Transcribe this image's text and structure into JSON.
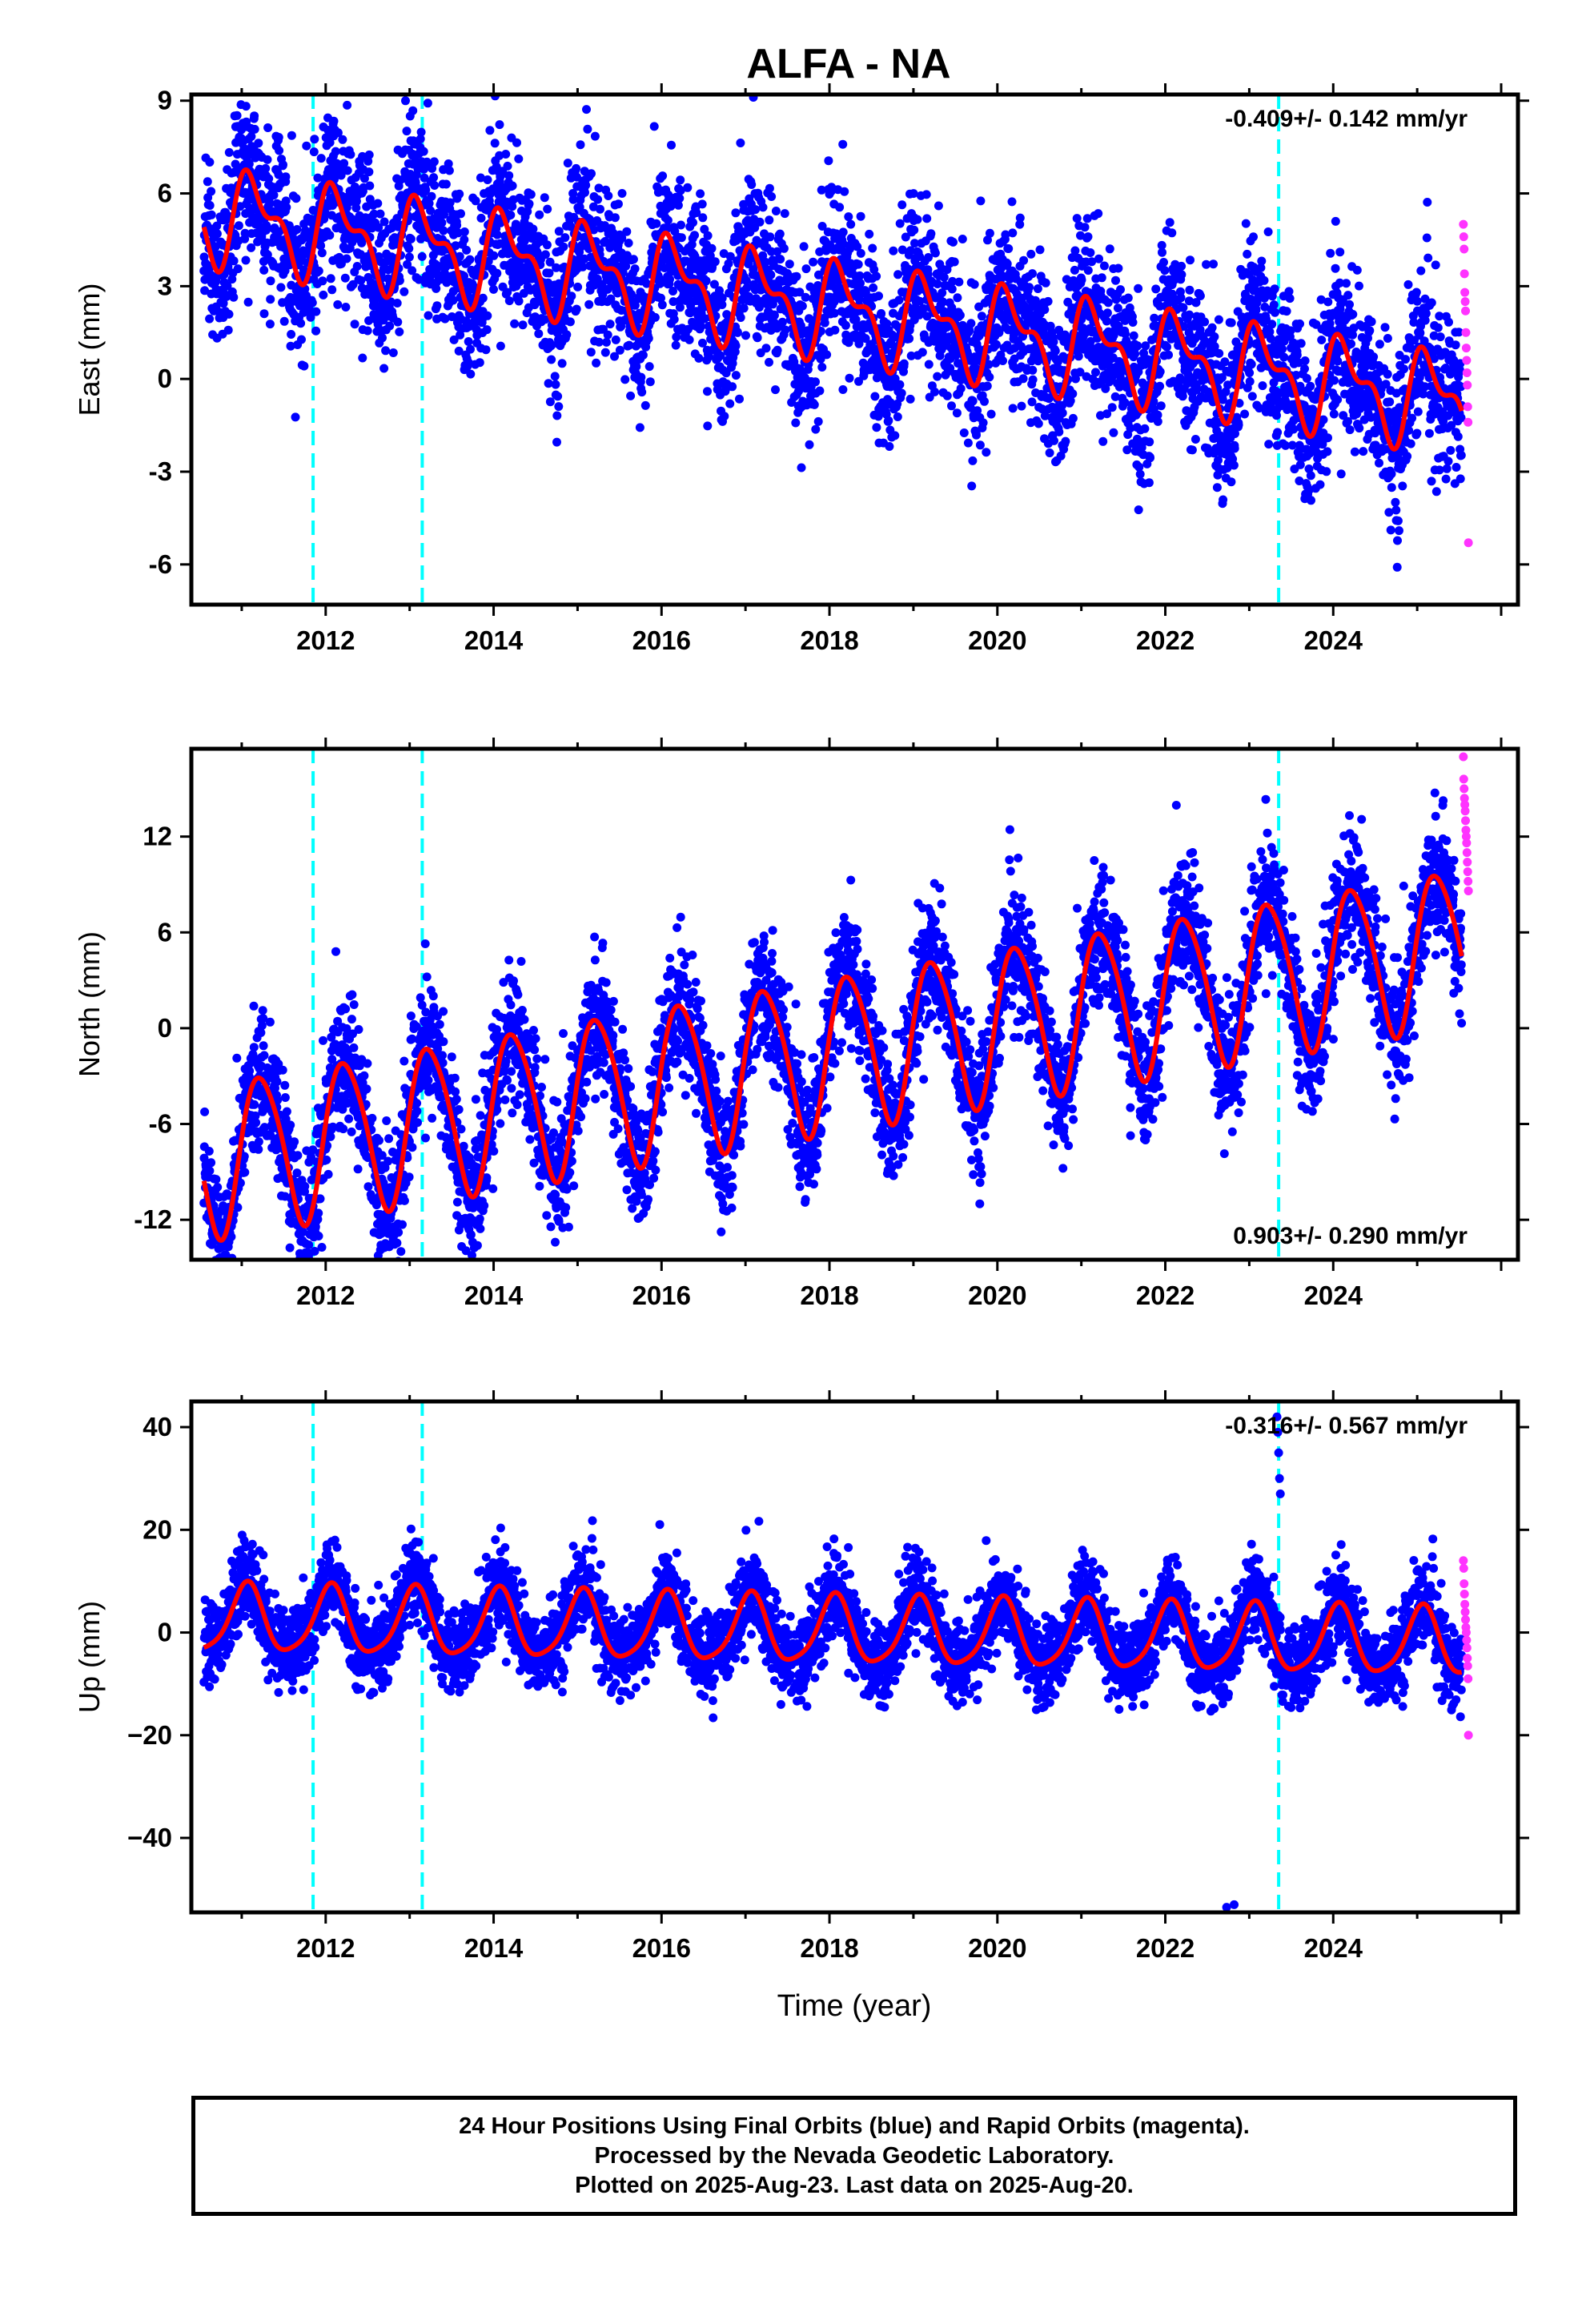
{
  "title": "ALFA - NA",
  "x_axis": {
    "label": "Time (year)",
    "ticks": [
      "2012",
      "2014",
      "2016",
      "2018",
      "2020",
      "2022",
      "2024"
    ],
    "tick_values": [
      2012,
      2014,
      2016,
      2018,
      2020,
      2022,
      2024
    ],
    "range": [
      2010.4,
      2026.2
    ]
  },
  "colors": {
    "final_orbits": "#0000ff",
    "rapid_orbits": "#ff33ff",
    "model": "#ff0000",
    "events": "#00ffff",
    "frame": "#000000"
  },
  "chart_data": [
    {
      "type": "scatter",
      "component": "east",
      "ylabel": "East (mm)",
      "ylim": [
        -7.3,
        9.2
      ],
      "yticks": [
        9,
        6,
        3,
        0,
        -3,
        -6
      ],
      "ytick_labels": [
        "9",
        "6",
        "3",
        "0",
        "-3",
        "-6"
      ],
      "rate_label": "-0.409+/- 0.142 mm/yr",
      "rate_position": "top-right",
      "rate_mm_per_yr": -0.409,
      "offset_mm": 2.3,
      "offset_epoch": 2018.0,
      "seasonal": {
        "annual_amp_mm": 1.3,
        "annual_phase": 0.6,
        "semiannual_amp_mm": 0.7,
        "semiannual_phase": 1.5
      },
      "scatter_sigma_mm": 1.3,
      "series": [
        {
          "name": "Final Orbits",
          "color": "blue",
          "x_start": 2010.55,
          "x_end": 2025.53
        },
        {
          "name": "Rapid Orbits",
          "color": "magenta",
          "x_start": 2025.53,
          "x_end": 2025.63,
          "values": [
            5.0,
            4.6,
            4.2,
            3.4,
            2.8,
            2.5,
            2.2,
            1.5,
            1.0,
            0.6,
            0.2,
            -0.2,
            -0.9,
            -1.4,
            -5.3
          ]
        }
      ],
      "event_lines": [
        2011.85,
        2013.15,
        2023.35
      ]
    },
    {
      "type": "scatter",
      "component": "north",
      "ylabel": "North (mm)",
      "ylim": [
        -14.5,
        17.5
      ],
      "yticks": [
        12,
        6,
        0,
        -6,
        -12
      ],
      "ytick_labels": [
        "12",
        "6",
        "0",
        "-6",
        "-12"
      ],
      "rate_label": "0.903+/- 0.290 mm/yr",
      "rate_position": "bottom-right",
      "rate_mm_per_yr": 0.903,
      "offset_mm": -1.5,
      "offset_epoch": 2018.0,
      "seasonal": {
        "annual_amp_mm": 4.8,
        "annual_phase": 0.1,
        "semiannual_amp_mm": 0.6,
        "semiannual_phase": 0.9
      },
      "scatter_sigma_mm": 2.0,
      "series": [
        {
          "name": "Final Orbits",
          "color": "blue",
          "x_start": 2010.55,
          "x_end": 2025.53
        },
        {
          "name": "Rapid Orbits",
          "color": "magenta",
          "x_start": 2025.53,
          "x_end": 2025.63,
          "values": [
            17.0,
            15.6,
            15.0,
            14.4,
            14.0,
            13.6,
            13.0,
            12.4,
            12.0,
            11.6,
            11.0,
            10.4,
            9.8,
            9.2,
            8.6
          ]
        }
      ],
      "event_lines": [
        2011.85,
        2013.15,
        2023.35
      ]
    },
    {
      "type": "scatter",
      "component": "up",
      "ylabel": "Up (mm)",
      "ylim": [
        -54.5,
        45
      ],
      "yticks": [
        40,
        20,
        0,
        -20,
        -40
      ],
      "ytick_labels": [
        "40",
        "20",
        "0",
        "−20",
        "−40"
      ],
      "rate_label": "-0.316+/- 0.567 mm/yr",
      "rate_position": "top-right",
      "rate_mm_per_yr": -0.316,
      "offset_mm": 0.2,
      "offset_epoch": 2018.0,
      "seasonal": {
        "annual_amp_mm": 6.5,
        "annual_phase": 1.2,
        "semiannual_amp_mm": 1.2,
        "semiannual_phase": 0.4
      },
      "scatter_sigma_mm": 4.0,
      "series": [
        {
          "name": "Final Orbits",
          "color": "blue",
          "x_start": 2010.55,
          "x_end": 2025.53
        },
        {
          "name": "Rapid Orbits",
          "color": "magenta",
          "x_start": 2025.53,
          "x_end": 2025.63,
          "values": [
            14.0,
            12.5,
            9.5,
            7.5,
            5.5,
            4.0,
            2.5,
            1.0,
            0.0,
            -1.5,
            -3.0,
            -5.0,
            -6.5,
            -9.0,
            -20.0
          ]
        }
      ],
      "outliers": [
        {
          "x": 2023.33,
          "y": 42.0
        },
        {
          "x": 2023.34,
          "y": 39.0
        },
        {
          "x": 2023.35,
          "y": 35.0
        },
        {
          "x": 2023.36,
          "y": 30.0
        },
        {
          "x": 2023.37,
          "y": 27.0
        },
        {
          "x": 2022.73,
          "y": -53.5
        },
        {
          "x": 2022.82,
          "y": -53.0
        }
      ],
      "event_lines": [
        2011.85,
        2013.15,
        2023.35
      ]
    }
  ],
  "caption": {
    "line1": "24 Hour Positions Using Final Orbits (blue) and Rapid Orbits (magenta).",
    "line2": "Processed by the Nevada Geodetic Laboratory.",
    "line3": "Plotted on 2025-Aug-23. Last data on 2025-Aug-20."
  }
}
